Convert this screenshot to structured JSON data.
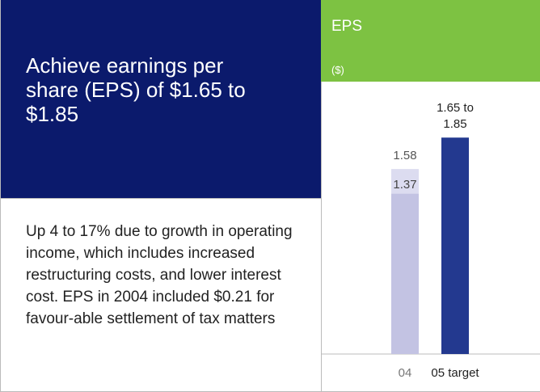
{
  "headline": "Achieve earnings per share (EPS) of $1.65 to $1.85",
  "body": "Up 4 to 17% due to growth in operating income, which includes increased restructuring costs, and lower interest cost. EPS in 2004 included $0.21 for favour-able settlement of tax matters",
  "chart_data": {
    "type": "bar",
    "title": "EPS",
    "subtitle": "($)",
    "categories": [
      "04",
      "05 target"
    ],
    "values": [
      1.58,
      1.85
    ],
    "value_labels": [
      "1.58",
      "1.65 to 1.85"
    ],
    "inner_values": [
      1.37,
      null
    ],
    "colors": [
      "#c3c3e3",
      "#23398f"
    ],
    "inner_color": "#dcdcf0",
    "category_colors": [
      "#777777",
      "#222222"
    ],
    "ylim": [
      0,
      1.9
    ]
  }
}
